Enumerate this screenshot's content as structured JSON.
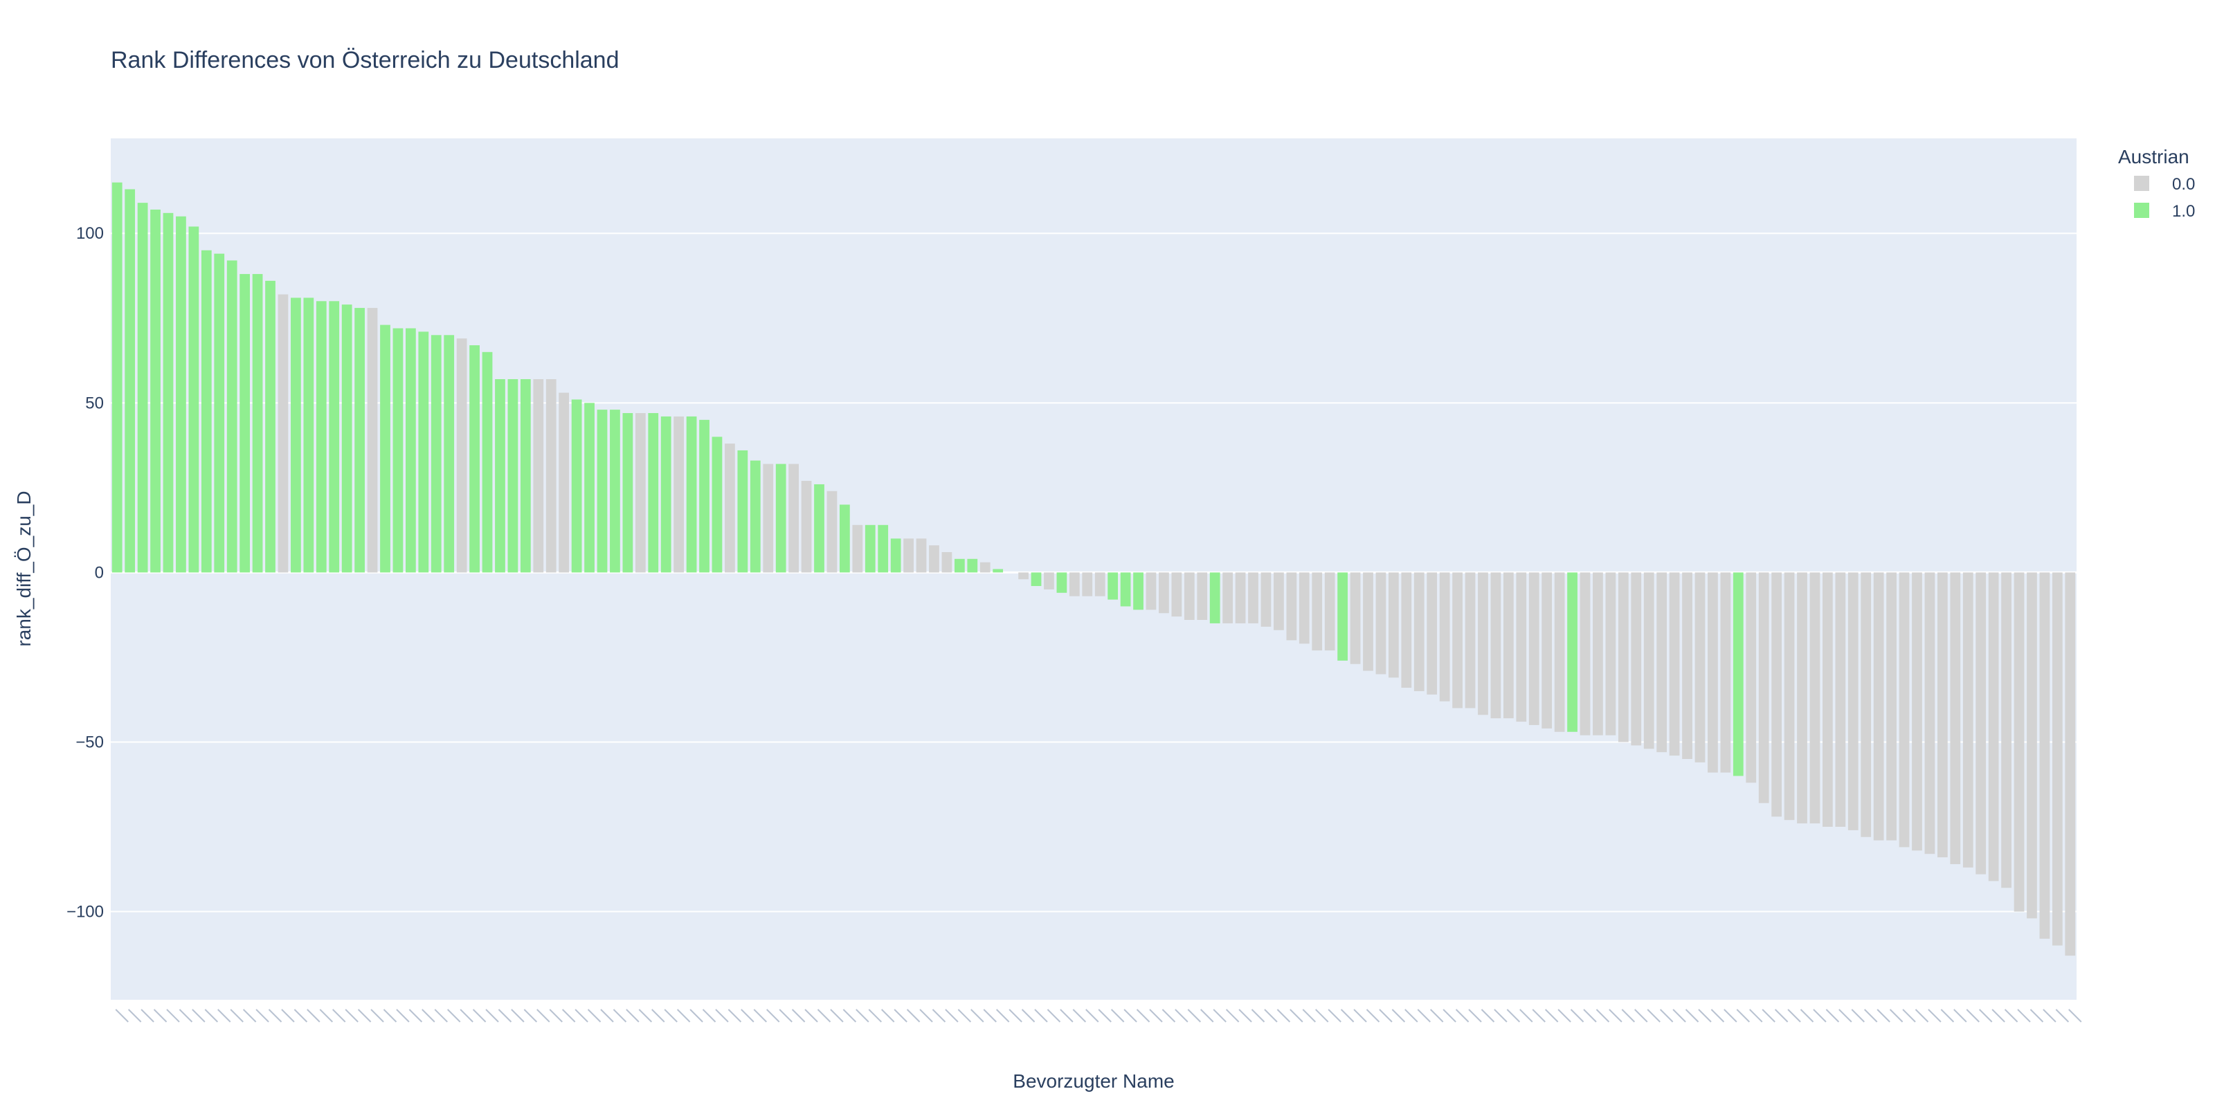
{
  "chart_data": {
    "type": "bar",
    "title": "Rank Differences von Österreich zu Deutschland",
    "xlabel": "Bevorzugter Name",
    "ylabel": "rank_diff_Ö_zu_D",
    "ylim": [
      -126,
      128
    ],
    "yticks": [
      {
        "value": 100,
        "label": "100"
      },
      {
        "value": 50,
        "label": "50"
      },
      {
        "value": 0,
        "label": "0"
      },
      {
        "value": -50,
        "label": "−50"
      },
      {
        "value": -100,
        "label": "−100"
      }
    ],
    "legend": {
      "title": "Austrian",
      "placement": "top-right",
      "entries": [
        {
          "label": "0.0",
          "color": "#d3d3d3"
        },
        {
          "label": "1.0",
          "color": "#90ee90"
        }
      ]
    },
    "colors": {
      "0": "#d3d3d3",
      "1": "#90ee90",
      "plot_bg": "#e5ecf6",
      "grid": "#ffffff",
      "text": "#2a3f5f"
    },
    "values": [
      115,
      113,
      109,
      107,
      106,
      105,
      102,
      95,
      94,
      92,
      88,
      88,
      86,
      82,
      81,
      81,
      80,
      80,
      79,
      78,
      78,
      73,
      72,
      72,
      71,
      70,
      70,
      69,
      67,
      65,
      57,
      57,
      57,
      57,
      57,
      53,
      51,
      50,
      48,
      48,
      47,
      47,
      47,
      46,
      46,
      46,
      45,
      40,
      38,
      36,
      33,
      32,
      32,
      32,
      27,
      26,
      24,
      20,
      14,
      14,
      14,
      10,
      10,
      10,
      8,
      6,
      4,
      4,
      3,
      1,
      0,
      -2,
      -4,
      -5,
      -6,
      -7,
      -7,
      -7,
      -8,
      -10,
      -11,
      -11,
      -12,
      -13,
      -14,
      -14,
      -15,
      -15,
      -15,
      -15,
      -16,
      -17,
      -20,
      -21,
      -23,
      -23,
      -26,
      -27,
      -29,
      -30,
      -31,
      -34,
      -35,
      -36,
      -38,
      -40,
      -40,
      -42,
      -43,
      -43,
      -44,
      -45,
      -46,
      -47,
      -47,
      -48,
      -48,
      -48,
      -50,
      -51,
      -52,
      -53,
      -54,
      -55,
      -56,
      -59,
      -59,
      -60,
      -62,
      -68,
      -72,
      -73,
      -74,
      -74,
      -75,
      -75,
      -76,
      -78,
      -79,
      -79,
      -81,
      -82,
      -83,
      -84,
      -86,
      -87,
      -89,
      -91,
      -93,
      -100,
      -102,
      -108,
      -110,
      -113
    ],
    "austrian": [
      1,
      1,
      1,
      1,
      1,
      1,
      1,
      1,
      1,
      1,
      1,
      1,
      1,
      0,
      1,
      1,
      1,
      1,
      1,
      1,
      0,
      1,
      1,
      1,
      1,
      1,
      1,
      0,
      1,
      1,
      1,
      1,
      1,
      0,
      0,
      0,
      1,
      1,
      1,
      1,
      1,
      0,
      1,
      1,
      0,
      1,
      1,
      1,
      0,
      1,
      1,
      0,
      1,
      0,
      0,
      1,
      0,
      1,
      0,
      1,
      1,
      1,
      0,
      0,
      0,
      0,
      1,
      1,
      0,
      1,
      0,
      0,
      1,
      0,
      1,
      0,
      0,
      0,
      1,
      1,
      1,
      0,
      0,
      0,
      0,
      0,
      1,
      0,
      0,
      0,
      0,
      0,
      0,
      0,
      0,
      0,
      1,
      0,
      0,
      0,
      0,
      0,
      0,
      0,
      0,
      0,
      0,
      0,
      0,
      0,
      0,
      0,
      0,
      0,
      1,
      0,
      0,
      0,
      0,
      0,
      0,
      0,
      0,
      0,
      0,
      0,
      0,
      1,
      0,
      0,
      0,
      0,
      0,
      0,
      0,
      0,
      0,
      0,
      0,
      0,
      0,
      0,
      0,
      0,
      0,
      0,
      0,
      0,
      0,
      0,
      0,
      0,
      0,
      0
    ]
  }
}
